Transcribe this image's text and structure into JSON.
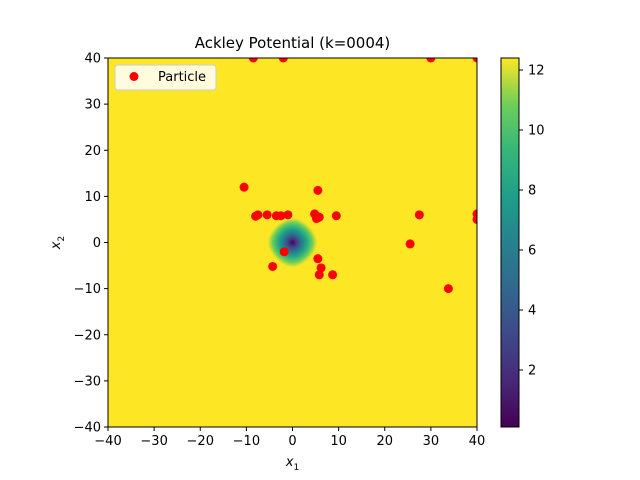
{
  "chart_data": {
    "type": "scatter",
    "title": "Ackley Potential (k=0004)",
    "xlabel": "x",
    "xlabel_sub": "1",
    "ylabel": "x",
    "ylabel_sub": "2",
    "xlim": [
      -40,
      40
    ],
    "ylim": [
      -40,
      40
    ],
    "xticks": [
      -40,
      -30,
      -20,
      -10,
      0,
      10,
      20,
      30,
      40
    ],
    "yticks": [
      -40,
      -30,
      -20,
      -10,
      0,
      10,
      20,
      30,
      40
    ],
    "background": {
      "type": "heatmap",
      "function": "Ackley",
      "colormap": "viridis",
      "min": 0.1,
      "max": 12.4
    },
    "colorbar": {
      "ticks": [
        2,
        4,
        6,
        8,
        10,
        12
      ],
      "range": [
        0.1,
        12.4
      ]
    },
    "legend": {
      "placement": "top-left",
      "entries": [
        "Particle"
      ]
    },
    "series": [
      {
        "name": "Particle",
        "color": "#ff0000",
        "marker": "circle",
        "points": [
          [
            -8.5,
            40
          ],
          [
            -2,
            40
          ],
          [
            30,
            40
          ],
          [
            40,
            40
          ],
          [
            -10.5,
            12
          ],
          [
            5.5,
            11.3
          ],
          [
            -8,
            5.7
          ],
          [
            -7.5,
            6
          ],
          [
            -5.5,
            6
          ],
          [
            -3.5,
            5.8
          ],
          [
            -2.5,
            5.8
          ],
          [
            -1,
            6
          ],
          [
            4.8,
            6.2
          ],
          [
            5.3,
            5.7
          ],
          [
            5.8,
            5.5
          ],
          [
            5.2,
            5.2
          ],
          [
            9.5,
            5.8
          ],
          [
            27.5,
            6
          ],
          [
            40,
            6.2
          ],
          [
            40,
            5
          ],
          [
            25.5,
            -0.3
          ],
          [
            -1.8,
            -2
          ],
          [
            5.5,
            -3.5
          ],
          [
            -4.3,
            -5.2
          ],
          [
            6.2,
            -5.5
          ],
          [
            5.8,
            -7
          ],
          [
            8.7,
            -7
          ],
          [
            33.8,
            -10
          ]
        ]
      }
    ]
  }
}
